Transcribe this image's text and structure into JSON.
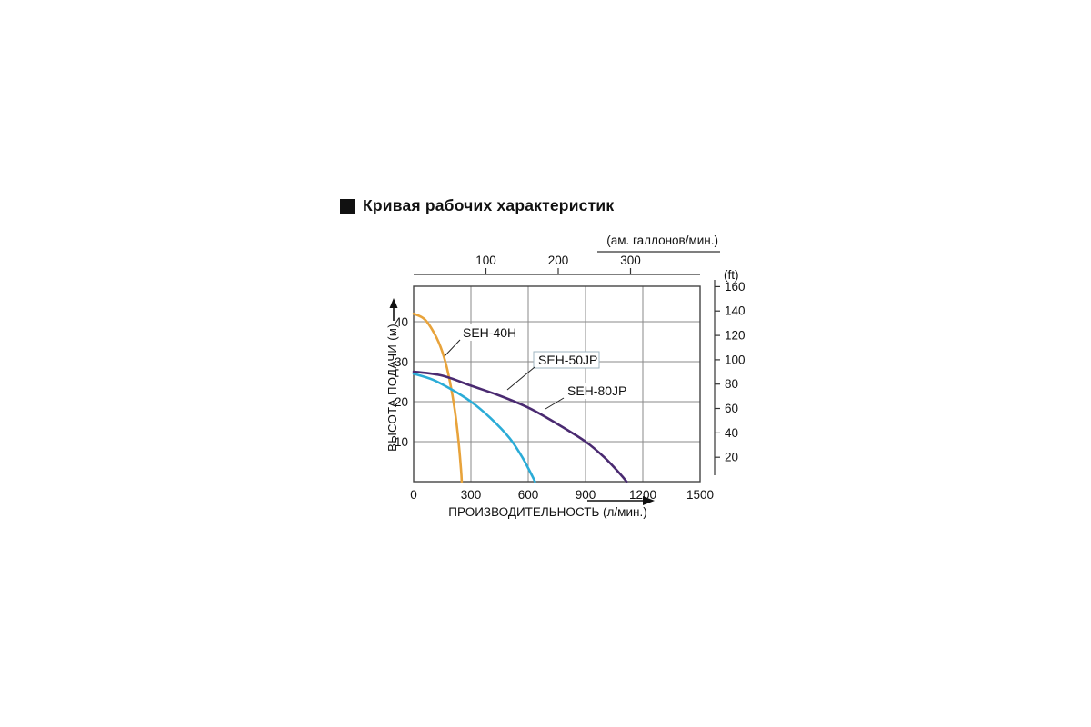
{
  "title": "Кривая рабочих характеристик",
  "chart_data": {
    "type": "line",
    "title": "Кривая рабочих характеристик",
    "xlabel": "ПРОИЗВОДИТЕЛЬНОСТЬ (л/мин.)",
    "ylabel": "ВЫСОТА ПОДАЧИ (м)",
    "grid": true,
    "legend_position": "inline-callouts",
    "x_axis": {
      "unit": "л/мин.",
      "range": [
        0,
        1500
      ],
      "ticks": [
        0,
        300,
        600,
        900,
        1200,
        1500
      ]
    },
    "y_axis": {
      "unit": "м",
      "range": [
        0,
        48
      ],
      "ticks": [
        10,
        20,
        30,
        40
      ]
    },
    "top_axis": {
      "label": "(ам. галлонов/мин.)",
      "ticks": [
        100,
        200,
        300
      ],
      "lmin_per_gal": 3.785
    },
    "right_axis": {
      "label": "(ft)",
      "ticks": [
        20,
        40,
        60,
        80,
        100,
        120,
        140,
        160
      ],
      "m_per_ft": 0.3048
    },
    "series": [
      {
        "name": "SEH-40H",
        "color": "#E8A33B",
        "points": [
          [
            0,
            42
          ],
          [
            60,
            40.5
          ],
          [
            120,
            36
          ],
          [
            160,
            31
          ],
          [
            190,
            25
          ],
          [
            215,
            18
          ],
          [
            235,
            10
          ],
          [
            248,
            3
          ],
          [
            252,
            0
          ]
        ]
      },
      {
        "name": "SEH-50JP",
        "color": "#2BACD7",
        "points": [
          [
            0,
            27
          ],
          [
            100,
            25.5
          ],
          [
            200,
            23
          ],
          [
            300,
            20
          ],
          [
            400,
            16
          ],
          [
            500,
            11
          ],
          [
            570,
            6
          ],
          [
            620,
            1.5
          ],
          [
            635,
            0
          ]
        ]
      },
      {
        "name": "SEH-80JP",
        "color": "#4A2A71",
        "points": [
          [
            0,
            27.5
          ],
          [
            150,
            26.5
          ],
          [
            300,
            24
          ],
          [
            450,
            21.5
          ],
          [
            600,
            18.5
          ],
          [
            750,
            14.5
          ],
          [
            900,
            10
          ],
          [
            1000,
            6
          ],
          [
            1080,
            2
          ],
          [
            1115,
            0
          ]
        ]
      }
    ]
  },
  "colors": {
    "grid": "#8a8a8a",
    "axis": "#333333",
    "text": "#111111"
  }
}
